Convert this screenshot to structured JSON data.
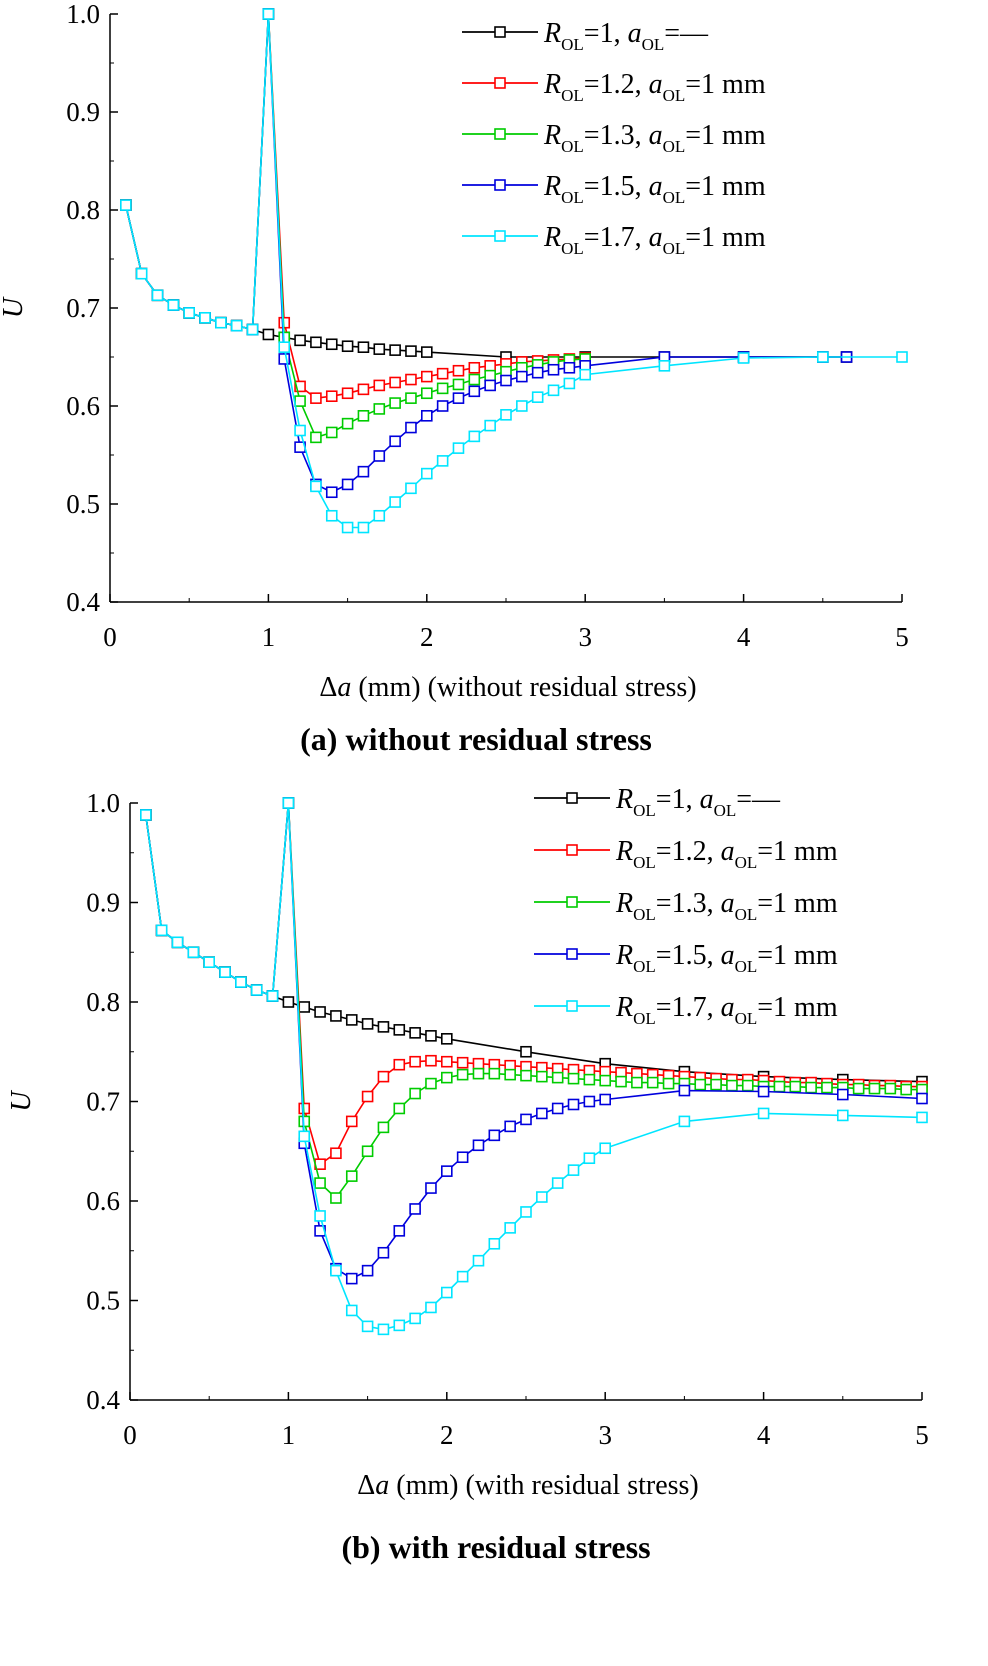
{
  "captions": [
    "(a)   without residual stress",
    "(b)   with residual stress"
  ],
  "chart_data": [
    {
      "type": "line",
      "title": "(a)   without residual stress",
      "xlabel": "Δa (mm) (without residual stress)",
      "xlabel_parts": [
        "Δ",
        "a",
        " (mm) (without residual stress)"
      ],
      "ylabel": "U",
      "xlim": [
        0,
        5
      ],
      "ylim": [
        0.4,
        1.0
      ],
      "xticks": [
        "0",
        "1",
        "2",
        "3",
        "4",
        "5"
      ],
      "yticks": [
        "0.4",
        "0.5",
        "0.6",
        "0.7",
        "0.8",
        "0.9",
        "1.0"
      ],
      "legend_position": "top-right",
      "series": [
        {
          "name": "R_OL=1, a_OL=—",
          "legend": {
            "r": "1",
            "a": "—",
            "unit": ""
          },
          "color": "#000000",
          "x": [
            0.1,
            0.2,
            0.3,
            0.4,
            0.5,
            0.6,
            0.7,
            0.8,
            0.9,
            1.0,
            1.1,
            1.2,
            1.3,
            1.4,
            1.5,
            1.6,
            1.7,
            1.8,
            1.9,
            2.0,
            2.5,
            3.0,
            3.5,
            4.0,
            4.5,
            4.65
          ],
          "y": [
            0.805,
            0.735,
            0.713,
            0.703,
            0.695,
            0.69,
            0.685,
            0.682,
            0.678,
            0.673,
            0.67,
            0.667,
            0.665,
            0.663,
            0.661,
            0.66,
            0.658,
            0.657,
            0.656,
            0.655,
            0.65,
            0.65,
            0.65,
            0.65,
            0.65,
            0.65
          ]
        },
        {
          "name": "R_OL=1.2, a_OL=1 mm",
          "legend": {
            "r": "1.2",
            "a": "1",
            "unit": " mm"
          },
          "color": "#ff0000",
          "x": [
            0.1,
            0.2,
            0.3,
            0.4,
            0.5,
            0.6,
            0.7,
            0.8,
            0.9,
            1.0,
            1.1,
            1.2,
            1.3,
            1.4,
            1.5,
            1.6,
            1.7,
            1.8,
            1.9,
            2.0,
            2.1,
            2.2,
            2.3,
            2.4,
            2.5,
            2.6,
            2.7,
            2.8,
            2.9,
            3.0
          ],
          "y": [
            0.805,
            0.735,
            0.713,
            0.703,
            0.695,
            0.69,
            0.685,
            0.682,
            0.678,
            1.0,
            0.685,
            0.62,
            0.608,
            0.61,
            0.613,
            0.617,
            0.621,
            0.624,
            0.627,
            0.63,
            0.633,
            0.636,
            0.639,
            0.641,
            0.643,
            0.645,
            0.646,
            0.647,
            0.648,
            0.649
          ]
        },
        {
          "name": "R_OL=1.3, a_OL=1 mm",
          "legend": {
            "r": "1.3",
            "a": "1",
            "unit": " mm"
          },
          "color": "#00cc00",
          "x": [
            0.1,
            0.2,
            0.3,
            0.4,
            0.5,
            0.6,
            0.7,
            0.8,
            0.9,
            1.0,
            1.1,
            1.2,
            1.3,
            1.4,
            1.5,
            1.6,
            1.7,
            1.8,
            1.9,
            2.0,
            2.1,
            2.2,
            2.3,
            2.4,
            2.5,
            2.6,
            2.7,
            2.8,
            2.9,
            3.0
          ],
          "y": [
            0.805,
            0.735,
            0.713,
            0.703,
            0.695,
            0.69,
            0.685,
            0.682,
            0.678,
            1.0,
            0.67,
            0.605,
            0.568,
            0.573,
            0.582,
            0.59,
            0.597,
            0.603,
            0.608,
            0.613,
            0.618,
            0.622,
            0.627,
            0.631,
            0.635,
            0.639,
            0.642,
            0.645,
            0.647,
            0.648
          ]
        },
        {
          "name": "R_OL=1.5, a_OL=1 mm",
          "legend": {
            "r": "1.5",
            "a": "1",
            "unit": " mm"
          },
          "color": "#0000dd",
          "x": [
            0.1,
            0.2,
            0.3,
            0.4,
            0.5,
            0.6,
            0.7,
            0.8,
            0.9,
            1.0,
            1.1,
            1.2,
            1.3,
            1.4,
            1.5,
            1.6,
            1.7,
            1.8,
            1.9,
            2.0,
            2.1,
            2.2,
            2.3,
            2.4,
            2.5,
            2.6,
            2.7,
            2.8,
            2.9,
            3.0,
            3.5,
            4.0,
            4.5,
            4.65
          ],
          "y": [
            0.805,
            0.735,
            0.713,
            0.703,
            0.695,
            0.69,
            0.685,
            0.682,
            0.678,
            1.0,
            0.648,
            0.558,
            0.52,
            0.512,
            0.52,
            0.533,
            0.549,
            0.564,
            0.578,
            0.59,
            0.6,
            0.608,
            0.615,
            0.621,
            0.626,
            0.63,
            0.634,
            0.637,
            0.639,
            0.641,
            0.65,
            0.65,
            0.65,
            0.65
          ]
        },
        {
          "name": "R_OL=1.7, a_OL=1 mm",
          "legend": {
            "r": "1.7",
            "a": "1",
            "unit": " mm"
          },
          "color": "#00e5ff",
          "x": [
            0.1,
            0.2,
            0.3,
            0.4,
            0.5,
            0.6,
            0.7,
            0.8,
            0.9,
            1.0,
            1.1,
            1.2,
            1.3,
            1.4,
            1.5,
            1.6,
            1.7,
            1.8,
            1.9,
            2.0,
            2.1,
            2.2,
            2.3,
            2.4,
            2.5,
            2.6,
            2.7,
            2.8,
            2.9,
            3.0,
            3.5,
            4.0,
            4.5,
            5.0
          ],
          "y": [
            0.805,
            0.735,
            0.713,
            0.703,
            0.695,
            0.69,
            0.685,
            0.682,
            0.678,
            1.0,
            0.66,
            0.575,
            0.518,
            0.488,
            0.476,
            0.476,
            0.488,
            0.502,
            0.516,
            0.531,
            0.544,
            0.557,
            0.569,
            0.58,
            0.591,
            0.6,
            0.609,
            0.616,
            0.623,
            0.632,
            0.641,
            0.649,
            0.65,
            0.65
          ]
        }
      ]
    },
    {
      "type": "line",
      "title": "(b)   with residual stress",
      "xlabel": "Δa (mm) (with residual stress)",
      "xlabel_parts": [
        "Δ",
        "a",
        " (mm) (with residual stress)"
      ],
      "ylabel": "U",
      "xlim": [
        0,
        5
      ],
      "ylim": [
        0.4,
        1.0
      ],
      "xticks": [
        "0",
        "1",
        "2",
        "3",
        "4",
        "5"
      ],
      "yticks": [
        "0.4",
        "0.5",
        "0.6",
        "0.7",
        "0.8",
        "0.9",
        "1.0"
      ],
      "legend_position": "top-right",
      "series": [
        {
          "name": "R_OL=1, a_OL=—",
          "legend": {
            "r": "1",
            "a": "—",
            "unit": ""
          },
          "color": "#000000",
          "x": [
            0.1,
            0.2,
            0.3,
            0.4,
            0.5,
            0.6,
            0.7,
            0.8,
            0.9,
            1.0,
            1.1,
            1.2,
            1.3,
            1.4,
            1.5,
            1.6,
            1.7,
            1.8,
            1.9,
            2.0,
            2.5,
            3.0,
            3.5,
            4.0,
            4.5,
            5.0
          ],
          "y": [
            0.988,
            0.872,
            0.86,
            0.85,
            0.84,
            0.83,
            0.82,
            0.812,
            0.806,
            0.8,
            0.795,
            0.79,
            0.786,
            0.782,
            0.778,
            0.775,
            0.772,
            0.769,
            0.766,
            0.763,
            0.75,
            0.738,
            0.73,
            0.725,
            0.722,
            0.72
          ]
        },
        {
          "name": "R_OL=1.2, a_OL=1 mm",
          "legend": {
            "r": "1.2",
            "a": "1",
            "unit": " mm"
          },
          "color": "#ff0000",
          "x": [
            0.1,
            0.2,
            0.3,
            0.4,
            0.5,
            0.6,
            0.7,
            0.8,
            0.9,
            1.0,
            1.1,
            1.2,
            1.3,
            1.4,
            1.5,
            1.6,
            1.7,
            1.8,
            1.9,
            2.0,
            2.1,
            2.2,
            2.3,
            2.4,
            2.5,
            2.6,
            2.7,
            2.8,
            2.9,
            3.0,
            3.1,
            3.2,
            3.3,
            3.4,
            3.5,
            3.6,
            3.7,
            3.8,
            3.9,
            4.0,
            4.1,
            4.2,
            4.3,
            4.4,
            4.5,
            4.6,
            4.7,
            4.8,
            4.9,
            5.0
          ],
          "y": [
            0.988,
            0.872,
            0.86,
            0.85,
            0.84,
            0.83,
            0.82,
            0.812,
            0.806,
            1.0,
            0.693,
            0.637,
            0.648,
            0.68,
            0.705,
            0.725,
            0.737,
            0.74,
            0.741,
            0.74,
            0.739,
            0.738,
            0.737,
            0.736,
            0.735,
            0.734,
            0.733,
            0.732,
            0.731,
            0.73,
            0.729,
            0.728,
            0.727,
            0.726,
            0.725,
            0.724,
            0.723,
            0.722,
            0.722,
            0.721,
            0.72,
            0.719,
            0.719,
            0.718,
            0.717,
            0.717,
            0.716,
            0.716,
            0.715,
            0.715
          ]
        },
        {
          "name": "R_OL=1.3, a_OL=1 mm",
          "legend": {
            "r": "1.3",
            "a": "1",
            "unit": " mm"
          },
          "color": "#00cc00",
          "x": [
            0.1,
            0.2,
            0.3,
            0.4,
            0.5,
            0.6,
            0.7,
            0.8,
            0.9,
            1.0,
            1.1,
            1.2,
            1.3,
            1.4,
            1.5,
            1.6,
            1.7,
            1.8,
            1.9,
            2.0,
            2.1,
            2.2,
            2.3,
            2.4,
            2.5,
            2.6,
            2.7,
            2.8,
            2.9,
            3.0,
            3.1,
            3.2,
            3.3,
            3.4,
            3.5,
            3.6,
            3.7,
            3.8,
            3.9,
            4.0,
            4.1,
            4.2,
            4.3,
            4.4,
            4.5,
            4.6,
            4.7,
            4.8,
            4.9,
            5.0
          ],
          "y": [
            0.988,
            0.872,
            0.86,
            0.85,
            0.84,
            0.83,
            0.82,
            0.812,
            0.806,
            1.0,
            0.68,
            0.618,
            0.603,
            0.625,
            0.65,
            0.674,
            0.693,
            0.708,
            0.718,
            0.724,
            0.727,
            0.728,
            0.728,
            0.727,
            0.726,
            0.725,
            0.724,
            0.723,
            0.722,
            0.721,
            0.72,
            0.719,
            0.719,
            0.718,
            0.718,
            0.717,
            0.717,
            0.716,
            0.716,
            0.715,
            0.715,
            0.715,
            0.714,
            0.714,
            0.714,
            0.713,
            0.713,
            0.713,
            0.712,
            0.712
          ]
        },
        {
          "name": "R_OL=1.5, a_OL=1 mm",
          "legend": {
            "r": "1.5",
            "a": "1",
            "unit": " mm"
          },
          "color": "#0000dd",
          "x": [
            0.1,
            0.2,
            0.3,
            0.4,
            0.5,
            0.6,
            0.7,
            0.8,
            0.9,
            1.0,
            1.1,
            1.2,
            1.3,
            1.4,
            1.5,
            1.6,
            1.7,
            1.8,
            1.9,
            2.0,
            2.1,
            2.2,
            2.3,
            2.4,
            2.5,
            2.6,
            2.7,
            2.8,
            2.9,
            3.0,
            3.5,
            4.0,
            4.5,
            5.0
          ],
          "y": [
            0.988,
            0.872,
            0.86,
            0.85,
            0.84,
            0.83,
            0.82,
            0.812,
            0.806,
            1.0,
            0.658,
            0.57,
            0.532,
            0.522,
            0.53,
            0.548,
            0.57,
            0.592,
            0.613,
            0.63,
            0.644,
            0.656,
            0.666,
            0.675,
            0.682,
            0.688,
            0.693,
            0.697,
            0.7,
            0.702,
            0.711,
            0.71,
            0.707,
            0.703
          ]
        },
        {
          "name": "R_OL=1.7, a_OL=1 mm",
          "legend": {
            "r": "1.7",
            "a": "1",
            "unit": " mm"
          },
          "color": "#00e5ff",
          "x": [
            0.1,
            0.2,
            0.3,
            0.4,
            0.5,
            0.6,
            0.7,
            0.8,
            0.9,
            1.0,
            1.1,
            1.2,
            1.3,
            1.4,
            1.5,
            1.6,
            1.7,
            1.8,
            1.9,
            2.0,
            2.1,
            2.2,
            2.3,
            2.4,
            2.5,
            2.6,
            2.7,
            2.8,
            2.9,
            3.0,
            3.5,
            4.0,
            4.5,
            5.0
          ],
          "y": [
            0.988,
            0.872,
            0.86,
            0.85,
            0.84,
            0.83,
            0.82,
            0.812,
            0.806,
            1.0,
            0.665,
            0.585,
            0.53,
            0.49,
            0.474,
            0.471,
            0.475,
            0.482,
            0.493,
            0.508,
            0.524,
            0.54,
            0.557,
            0.573,
            0.589,
            0.604,
            0.618,
            0.631,
            0.643,
            0.653,
            0.68,
            0.688,
            0.686,
            0.684
          ]
        }
      ]
    }
  ]
}
